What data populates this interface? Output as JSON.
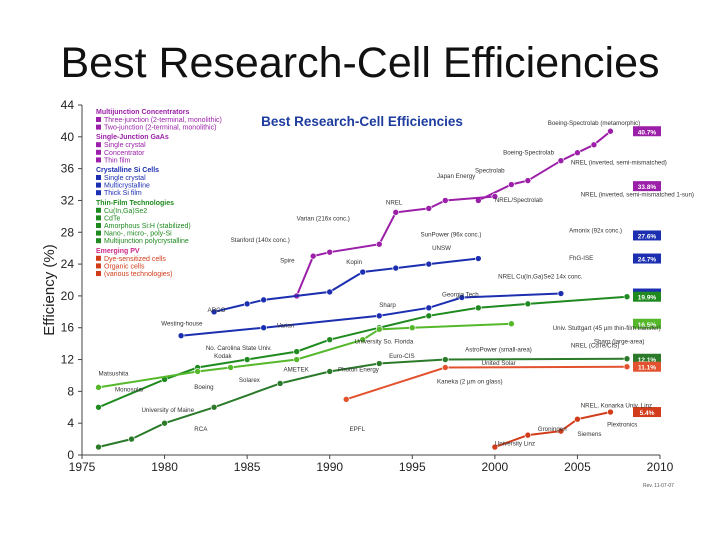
{
  "slide_title": "Best Research-Cell Efficiencies",
  "chart_data": {
    "type": "line",
    "title": "Best Research-Cell Efficiencies",
    "ylabel": "Efficiency (%)",
    "xlabel": "",
    "xlim": [
      1975,
      2010
    ],
    "ylim": [
      0,
      44
    ],
    "x_ticks": [
      "1975",
      "1980",
      "1985",
      "1990",
      "1995",
      "2000",
      "2005",
      "2010"
    ],
    "y_ticks": [
      "0",
      "4",
      "8",
      "12",
      "16",
      "20",
      "24",
      "28",
      "32",
      "36",
      "40",
      "44"
    ],
    "grid": false,
    "legend_position": "top-left",
    "footnote": "Rev. 11-07-07",
    "colors": {
      "multijunction": "#9b1fa8",
      "crystalline_si": "#1c2fb0",
      "thin_film": "#1f8a1f",
      "cdte_light": "#55b82a",
      "amorphous": "#2a7a2a",
      "dye": "#e2522f",
      "organic": "#d23c1a",
      "blue_title": "#1d3c9e",
      "section_title": "#cc2a87"
    },
    "legend": {
      "groups": [
        {
          "title": "Multijunction Concentrators",
          "color": "#9b1fa8",
          "items": [
            "Three-junction (2-terminal, monolithic)",
            "Two-junction (2-terminal, monolithic)"
          ]
        },
        {
          "title": "Single-Junction GaAs",
          "color": "#9b1fa8",
          "items": [
            "Single crystal",
            "Concentrator",
            "Thin film"
          ]
        },
        {
          "title": "Crystalline Si Cells",
          "color": "#1c2fb0",
          "items": [
            "Single crystal",
            "Multicrystalline",
            "Thick Si film"
          ]
        },
        {
          "title": "Thin-Film Technologies",
          "color": "#1f8a1f",
          "items": [
            "Cu(In,Ga)Se2",
            "CdTe",
            "Amorphous Si:H (stabilized)",
            "Nano-, micro-, poly-Si",
            "Multijunction polycrystalline"
          ]
        },
        {
          "title": "Emerging PV",
          "color": "#d23c1a",
          "items": [
            "Dye-sensitized cells",
            "Organic cells",
            "(various technologies)"
          ]
        }
      ]
    },
    "series": [
      {
        "name": "Three-junction (2-terminal, monolithic)",
        "color": "#9b1fa8",
        "x": [
          1999,
          2001,
          2002,
          2004,
          2005,
          2006,
          2007
        ],
        "y": [
          32,
          34,
          34.5,
          37,
          38,
          39,
          40.7
        ]
      },
      {
        "name": "Two-junction (2-terminal, monolithic)",
        "color": "#9b1fa8",
        "x": [
          1988,
          1989,
          1990,
          1993,
          1994,
          1996,
          1997,
          2000
        ],
        "y": [
          20,
          25,
          25.5,
          26.5,
          30.5,
          31,
          32,
          32.5
        ]
      },
      {
        "name": "Crystalline Si Cells Single crystal",
        "color": "#1c2fb0",
        "x": [
          1983,
          1985,
          1986,
          1990,
          1992,
          1994,
          1996,
          1999
        ],
        "y": [
          18,
          19,
          19.5,
          20.5,
          23,
          23.5,
          24,
          24.7
        ]
      },
      {
        "name": "Crystalline Si Cells Multicrystalline",
        "color": "#1c2fb0",
        "x": [
          1981,
          1986,
          1993,
          1996,
          1998,
          2004
        ],
        "y": [
          15,
          16,
          17.5,
          18.5,
          19.8,
          20.3
        ]
      },
      {
        "name": "Cu(In,Ga)Se2",
        "color": "#1f8a1f",
        "x": [
          1976,
          1980,
          1982,
          1985,
          1988,
          1990,
          1993,
          1996,
          1999,
          2002,
          2008
        ],
        "y": [
          6,
          9.5,
          11,
          12,
          13,
          14.5,
          16,
          17.5,
          18.5,
          19,
          19.9
        ]
      },
      {
        "name": "CdTe",
        "color": "#55b82a",
        "x": [
          1976,
          1982,
          1984,
          1988,
          1992,
          1993,
          1995,
          2001
        ],
        "y": [
          8.5,
          10.5,
          11,
          12,
          14.5,
          15.8,
          16,
          16.5
        ]
      },
      {
        "name": "Amorphous Si:H (stabilized)",
        "color": "#2a7a2a",
        "x": [
          1976,
          1978,
          1980,
          1983,
          1987,
          1990,
          1993,
          1997,
          2008
        ],
        "y": [
          1,
          2,
          4,
          6,
          9,
          10.5,
          11.5,
          12,
          12.1
        ]
      },
      {
        "name": "Dye-sensitized cells",
        "color": "#e2522f",
        "x": [
          1991,
          1997,
          2008
        ],
        "y": [
          7,
          11,
          11.1
        ]
      },
      {
        "name": "Organic cells",
        "color": "#d23c1a",
        "x": [
          2000,
          2002,
          2004,
          2005,
          2007
        ],
        "y": [
          1,
          2.5,
          3,
          4.5,
          5.4
        ]
      }
    ],
    "end_labels": [
      "40.7%",
      "33.8%",
      "27.6%",
      "24.7%",
      "20.3%",
      "19.9%",
      "16.5%",
      "12.1%",
      "11.1%",
      "5.4%"
    ],
    "annotations": [
      "Boeing-Spectrolab (metamorphic)",
      "Boeing-Spectrolab",
      "NREL (inverted, semi-mismatched)",
      "Spectrolab",
      "Japan Energy",
      "NREL/Spectrolab",
      "NREL",
      "NREL (inverted, semi-mismatched 1-sun)",
      "Varian (216x conc.)",
      "Stanford (140x conc.)",
      "SunPower (96x conc.)",
      "Amonix (92x conc.)",
      "FhG-ISE",
      "Spire",
      "Kopin",
      "UNSW",
      "ARCO",
      "Westing-house",
      "Varian",
      "Sharp",
      "Georgia Tech",
      "NREL Cu(In,Ga)Se2 14x conc.",
      "Univ. Stuttgart (45 µm thin-film transfer)",
      "NREL (CdTe/CIS)",
      "United Solar",
      "Euro-CIS",
      "AstroPower (small-area)",
      "University So. Florida",
      "Photon Energy",
      "AMETEK",
      "Solarex",
      "Kodak",
      "Boeing",
      "Matsushita",
      "Monosolar",
      "University of Maine",
      "RCA",
      "Kaneka (2 µm on glass)",
      "EPFL",
      "Groningen",
      "NREL, Konarka Univ. Linz",
      "Siemens",
      "Plextronics",
      "University Linz",
      "No. Carolina State Univ.",
      "Sharp (large-area)"
    ]
  }
}
